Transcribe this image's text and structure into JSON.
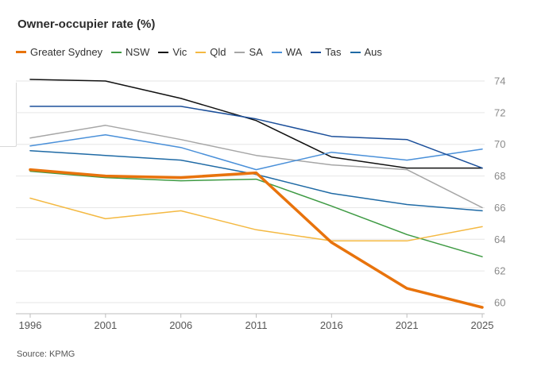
{
  "source": "Source: KPMG",
  "chart_data": {
    "type": "line",
    "title": "Owner-occupier rate (%)",
    "x": [
      "1996",
      "2001",
      "2006",
      "2011",
      "2016",
      "2021",
      "2025"
    ],
    "yticks": [
      60,
      62,
      64,
      66,
      68,
      70,
      72,
      74
    ],
    "ylim": [
      59.3,
      74.5
    ],
    "grid": true,
    "legend_position": "top",
    "y_axis_side": "right",
    "series": [
      {
        "name": "Greater Sydney",
        "color": "#e8730c",
        "width": 3.5,
        "values": [
          68.4,
          68.0,
          67.9,
          68.2,
          63.8,
          60.9,
          59.7
        ]
      },
      {
        "name": "NSW",
        "color": "#3e9a43",
        "width": 1.5,
        "values": [
          68.3,
          67.9,
          67.7,
          67.8,
          66.1,
          64.3,
          62.9
        ]
      },
      {
        "name": "Vic",
        "color": "#111111",
        "width": 1.5,
        "values": [
          74.1,
          74.0,
          72.9,
          71.5,
          69.2,
          68.5,
          68.5
        ]
      },
      {
        "name": "Qld",
        "color": "#f4b942",
        "width": 1.5,
        "values": [
          66.6,
          65.3,
          65.8,
          64.6,
          63.9,
          63.9,
          64.8
        ]
      },
      {
        "name": "SA",
        "color": "#a6a6a6",
        "width": 1.5,
        "values": [
          70.4,
          71.2,
          70.3,
          69.3,
          68.7,
          68.4,
          66.0
        ]
      },
      {
        "name": "WA",
        "color": "#4a90d9",
        "width": 1.5,
        "values": [
          69.9,
          70.6,
          69.8,
          68.4,
          69.5,
          69.0,
          69.7
        ]
      },
      {
        "name": "Tas",
        "color": "#1b4f9a",
        "width": 1.5,
        "values": [
          72.4,
          72.4,
          72.4,
          71.6,
          70.5,
          70.3,
          68.5
        ]
      },
      {
        "name": "Aus",
        "color": "#1f6aa5",
        "width": 1.5,
        "values": [
          69.6,
          69.3,
          69.0,
          68.1,
          66.9,
          66.2,
          65.8
        ]
      }
    ]
  }
}
